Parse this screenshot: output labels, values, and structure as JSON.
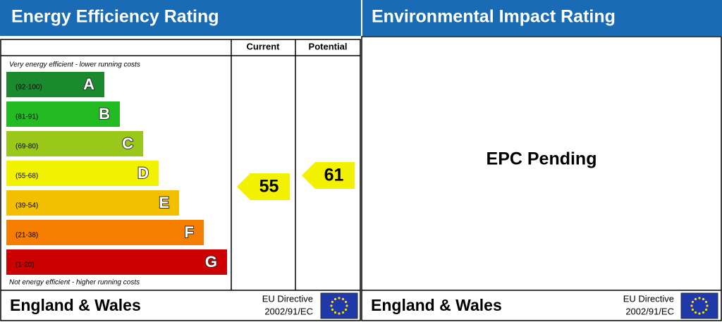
{
  "left": {
    "title": "Energy Efficiency Rating",
    "columns": [
      "Current",
      "Potential"
    ],
    "top_note": "Very energy efficient - lower running costs",
    "bottom_note": "Not energy efficient - higher running costs",
    "bands": [
      {
        "range": "(92-100)",
        "letter": "A",
        "color": "#1b8a2f"
      },
      {
        "range": "(81-91)",
        "letter": "B",
        "color": "#22bb22"
      },
      {
        "range": "(69-80)",
        "letter": "C",
        "color": "#99c71a"
      },
      {
        "range": "(55-68)",
        "letter": "D",
        "color": "#f2f200"
      },
      {
        "range": "(39-54)",
        "letter": "E",
        "color": "#f2c000"
      },
      {
        "range": "(21-38)",
        "letter": "F",
        "color": "#f57d00"
      },
      {
        "range": "(1-20)",
        "letter": "G",
        "color": "#cc0000"
      }
    ],
    "current": 55,
    "potential": 61,
    "arrow_color": "#f2f200",
    "footer": {
      "region": "England & Wales",
      "directive": "EU Directive",
      "directive_code": "2002/91/EC"
    }
  },
  "right": {
    "title": "Environmental Impact Rating",
    "status": "EPC Pending",
    "footer": {
      "region": "England & Wales",
      "directive": "EU Directive",
      "directive_code": "2002/91/EC"
    }
  }
}
